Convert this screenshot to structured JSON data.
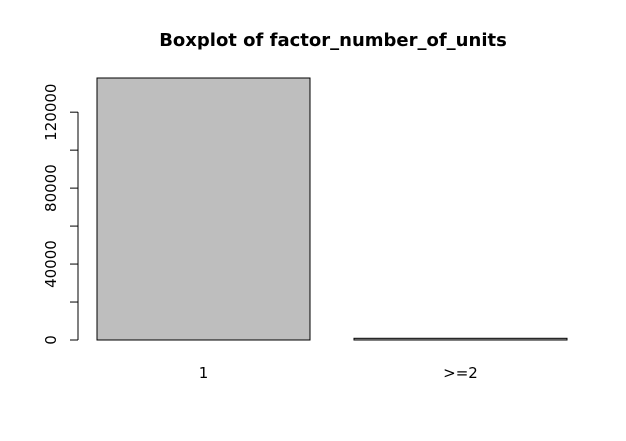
{
  "chart_data": {
    "type": "bar",
    "title": "Boxplot of factor_number_of_units",
    "xlabel": "",
    "ylabel": "",
    "categories": [
      "1",
      ">=2"
    ],
    "values": [
      138000,
      900
    ],
    "ylim": [
      0,
      138000
    ],
    "yticks": [
      0,
      40000,
      80000,
      120000
    ],
    "yticks_minor": [
      20000,
      60000,
      100000
    ],
    "ytick_labels": [
      "0",
      "40000",
      "80000",
      "120000"
    ],
    "grid": false,
    "legend": "none",
    "bar_fill": "#bebebe",
    "bar_stroke": "#000000"
  }
}
